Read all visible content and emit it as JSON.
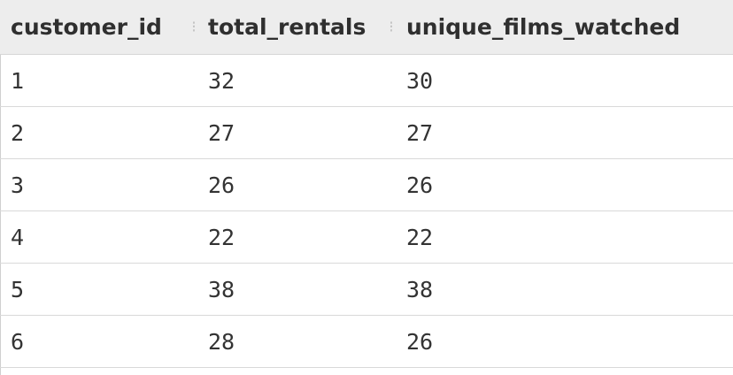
{
  "table": {
    "columns": [
      "customer_id",
      "total_rentals",
      "unique_films_watched"
    ],
    "rows": [
      [
        "1",
        "32",
        "30"
      ],
      [
        "2",
        "27",
        "27"
      ],
      [
        "3",
        "26",
        "26"
      ],
      [
        "4",
        "22",
        "22"
      ],
      [
        "5",
        "38",
        "38"
      ],
      [
        "6",
        "28",
        "26"
      ]
    ]
  }
}
